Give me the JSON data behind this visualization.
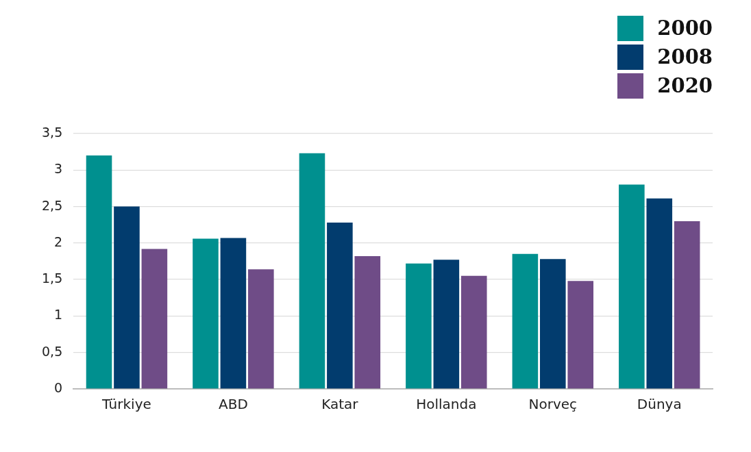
{
  "chart_data": {
    "type": "bar",
    "categories": [
      "Türkiye",
      "ABD",
      "Katar",
      "Hollanda",
      "Norveç",
      "Dünya"
    ],
    "series": [
      {
        "name": "2000",
        "color": "#00908f",
        "values": [
          3.2,
          2.06,
          3.23,
          1.72,
          1.85,
          2.8
        ]
      },
      {
        "name": "2008",
        "color": "#023c6e",
        "values": [
          2.5,
          2.07,
          2.28,
          1.77,
          1.78,
          2.61
        ]
      },
      {
        "name": "2020",
        "color": "#6f4c87",
        "values": [
          1.92,
          1.64,
          1.82,
          1.55,
          1.48,
          2.3
        ]
      }
    ],
    "ylim": [
      0,
      3.5
    ],
    "yticks": [
      0,
      {
        "value": 0.5,
        "label": "0,5"
      },
      1,
      {
        "value": 1.5,
        "label": "1,5"
      },
      2,
      {
        "value": 2.5,
        "label": "2,5"
      },
      3,
      {
        "value": 3.5,
        "label": "3,5"
      }
    ],
    "grid": "y",
    "legend": "top right"
  }
}
